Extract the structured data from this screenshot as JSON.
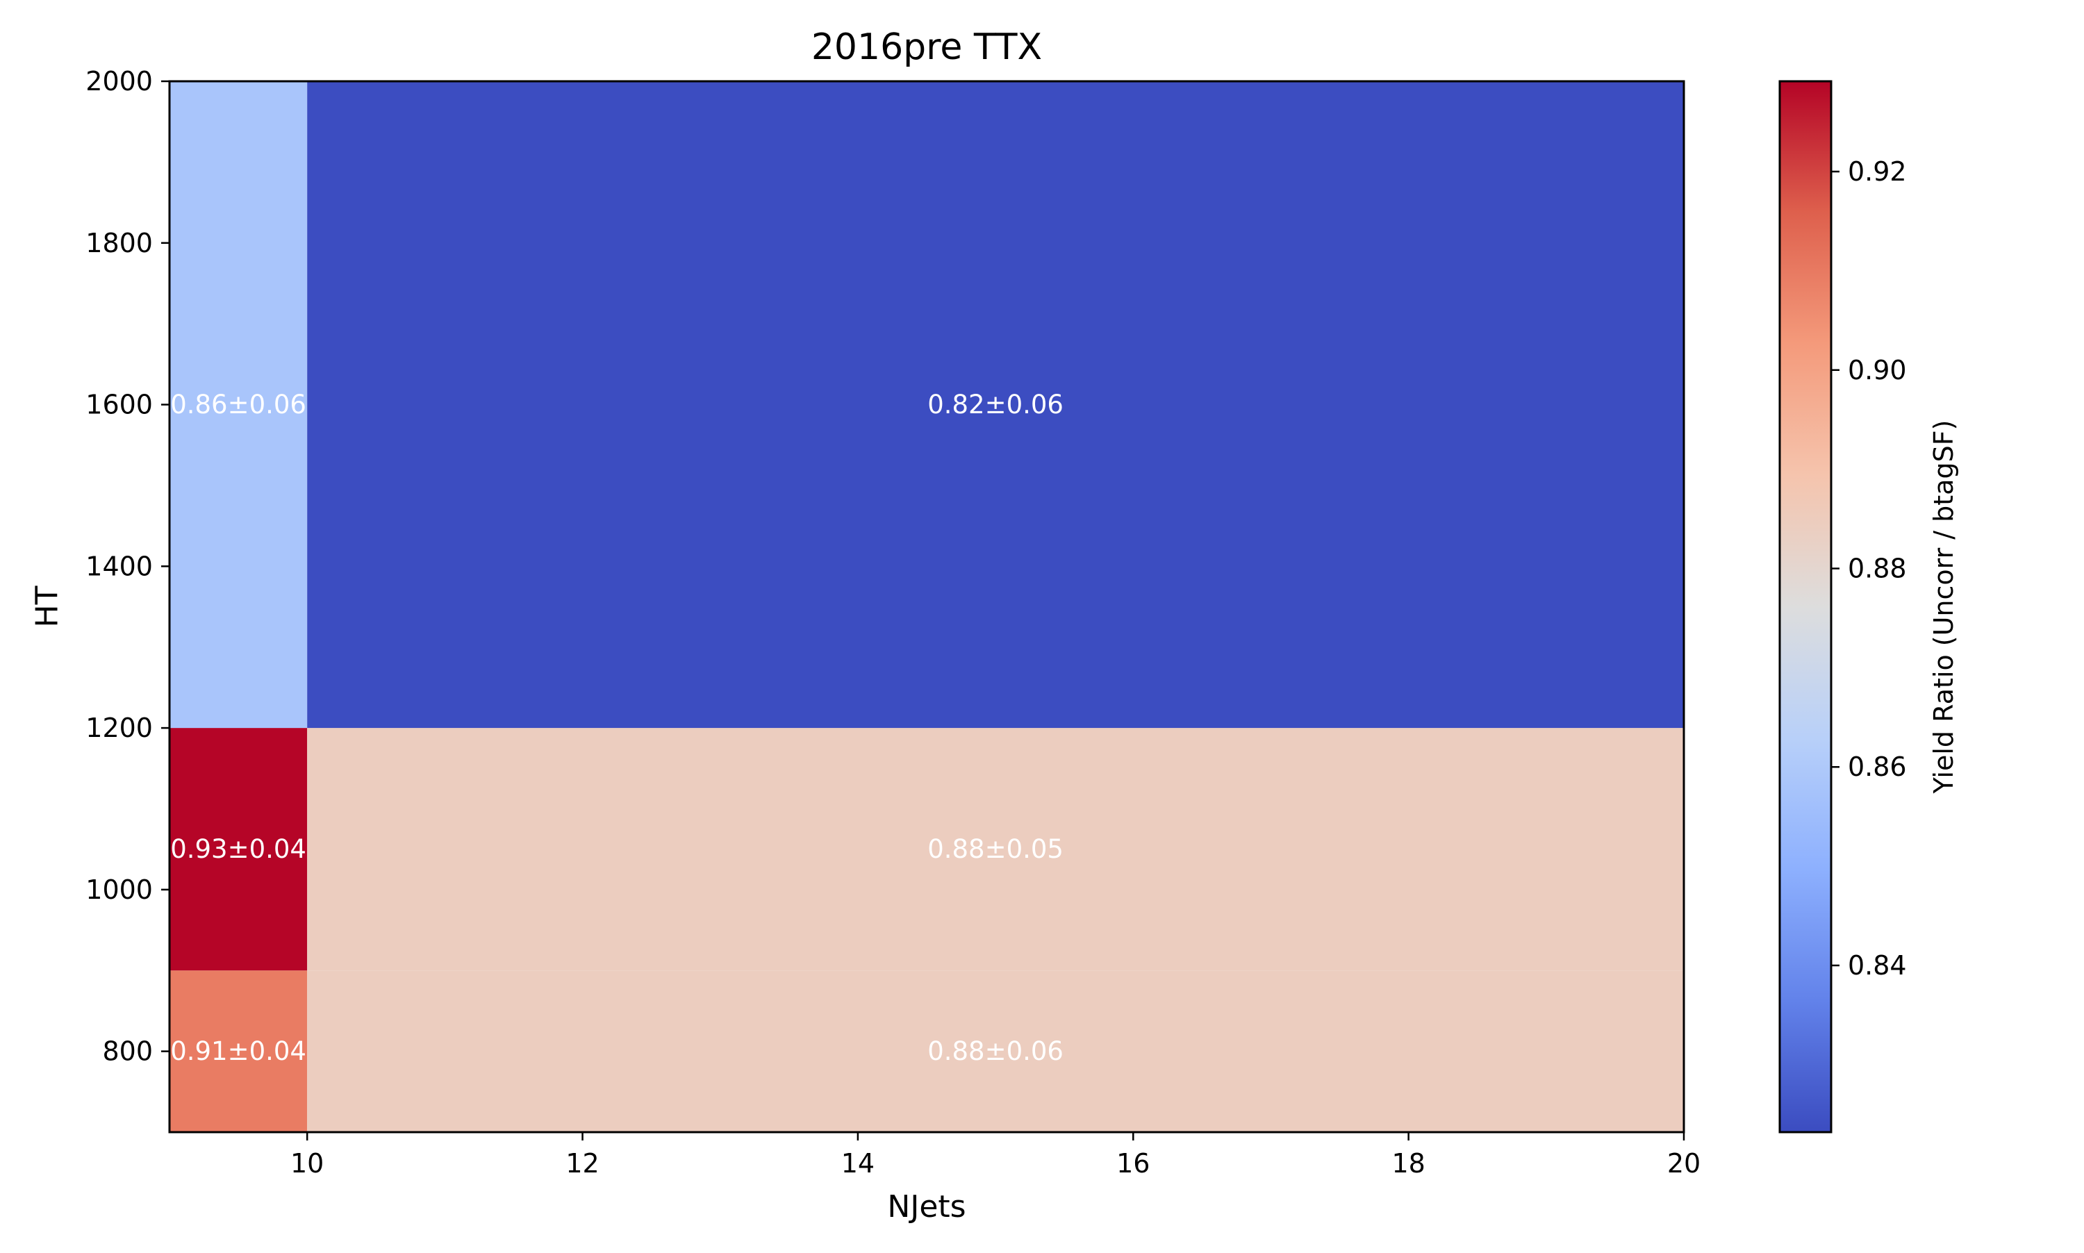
{
  "chart_data": {
    "type": "heatmap",
    "title": "2016pre TTX",
    "xlabel": "NJets",
    "ylabel": "HT",
    "x_edges": [
      9,
      10,
      20
    ],
    "y_edges": [
      700,
      900,
      1200,
      2000
    ],
    "xlim": [
      9,
      20
    ],
    "ylim": [
      700,
      2000
    ],
    "x_ticks": [
      10,
      12,
      14,
      16,
      18,
      20
    ],
    "y_ticks": [
      800,
      1000,
      1200,
      1400,
      1600,
      1800,
      2000
    ],
    "cells": [
      {
        "x": [
          9,
          10
        ],
        "y": [
          700,
          900
        ],
        "value": 0.9094,
        "label": "0.91±0.04"
      },
      {
        "x": [
          10,
          20
        ],
        "y": [
          700,
          900
        ],
        "value": 0.8845,
        "label": "0.88±0.06"
      },
      {
        "x": [
          9,
          10
        ],
        "y": [
          900,
          1200
        ],
        "value": 0.9289,
        "label": "0.93±0.04"
      },
      {
        "x": [
          10,
          20
        ],
        "y": [
          900,
          1200
        ],
        "value": 0.8845,
        "label": "0.88±0.05"
      },
      {
        "x": [
          9,
          10
        ],
        "y": [
          1200,
          2000
        ],
        "value": 0.8582,
        "label": "0.86±0.06"
      },
      {
        "x": [
          10,
          20
        ],
        "y": [
          1200,
          2000
        ],
        "value": 0.8235,
        "label": "0.82±0.06"
      }
    ],
    "colorbar": {
      "label": "Yield Ratio (Uncorr / btagSF)",
      "colormap": "coolwarm",
      "range": [
        0.8232,
        0.9291
      ],
      "ticks": [
        0.84,
        0.86,
        0.88,
        0.9,
        0.92
      ],
      "tick_labels": [
        "0.84",
        "0.86",
        "0.88",
        "0.90",
        "0.92"
      ]
    },
    "grid": false,
    "legend": "none"
  }
}
